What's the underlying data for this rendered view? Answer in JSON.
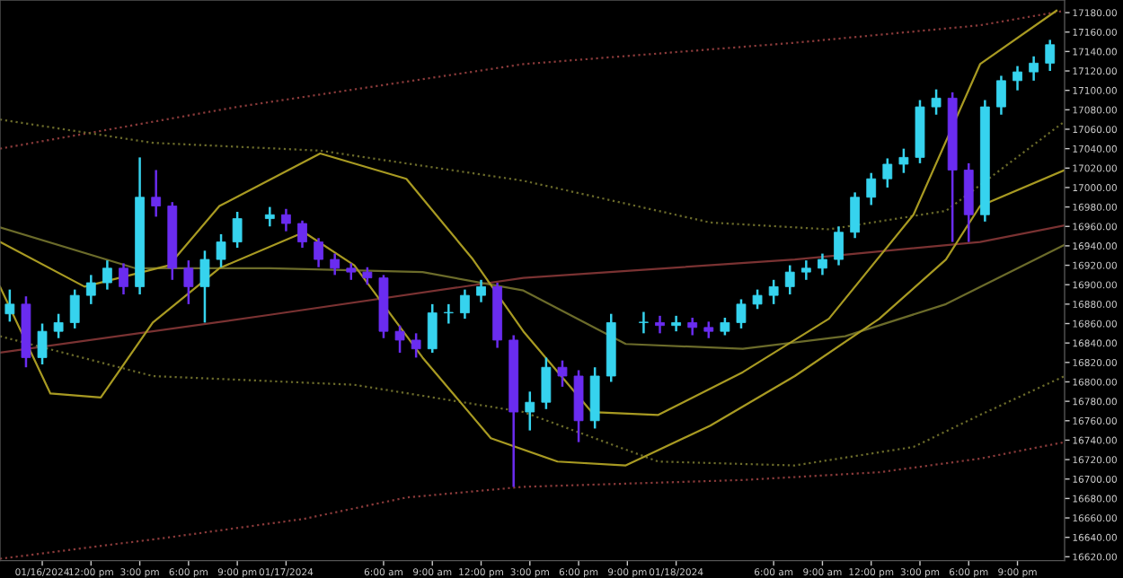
{
  "chart_data": {
    "type": "candlestick",
    "x": [
      "2024-01-16T07:00",
      "2024-01-16T08:00",
      "2024-01-16T09:00",
      "2024-01-16T10:00",
      "2024-01-16T11:00",
      "2024-01-16T12:00",
      "2024-01-16T13:00",
      "2024-01-16T14:00",
      "2024-01-16T15:00",
      "2024-01-16T16:00",
      "2024-01-16T17:00",
      "2024-01-16T18:00",
      "2024-01-16T19:00",
      "2024-01-16T20:00",
      "2024-01-16T21:00",
      "2024-01-16T23:00",
      "2024-01-17T00:00",
      "2024-01-17T01:00",
      "2024-01-17T02:00",
      "2024-01-17T03:00",
      "2024-01-17T04:00",
      "2024-01-17T05:00",
      "2024-01-17T06:00",
      "2024-01-17T07:00",
      "2024-01-17T08:00",
      "2024-01-17T09:00",
      "2024-01-17T10:00",
      "2024-01-17T11:00",
      "2024-01-17T12:00",
      "2024-01-17T13:00",
      "2024-01-17T14:00",
      "2024-01-17T15:00",
      "2024-01-17T16:00",
      "2024-01-17T17:00",
      "2024-01-17T18:00",
      "2024-01-17T19:00",
      "2024-01-17T20:00",
      "2024-01-17T22:00",
      "2024-01-17T23:00",
      "2024-01-18T00:00",
      "2024-01-18T01:00",
      "2024-01-18T02:00",
      "2024-01-18T03:00",
      "2024-01-18T04:00",
      "2024-01-18T05:00",
      "2024-01-18T06:00",
      "2024-01-18T07:00",
      "2024-01-18T08:00",
      "2024-01-18T09:00",
      "2024-01-18T10:00",
      "2024-01-18T11:00",
      "2024-01-18T12:00",
      "2024-01-18T13:00",
      "2024-01-18T14:00",
      "2024-01-18T15:00",
      "2024-01-18T16:00",
      "2024-01-18T17:00",
      "2024-01-18T18:00",
      "2024-01-18T19:00",
      "2024-01-18T20:00",
      "2024-01-18T21:00",
      "2024-01-18T22:00",
      "2024-01-18T23:00"
    ],
    "ohlc": [
      [
        16870,
        16895,
        16862,
        16880
      ],
      [
        16880,
        16888,
        16815,
        16825
      ],
      [
        16825,
        16860,
        16818,
        16852
      ],
      [
        16852,
        16870,
        16845,
        16861
      ],
      [
        16861,
        16895,
        16855,
        16889
      ],
      [
        16889,
        16910,
        16880,
        16902
      ],
      [
        16902,
        16925,
        16895,
        16917
      ],
      [
        16917,
        16922,
        16890,
        16898
      ],
      [
        16898,
        17031,
        16890,
        16990
      ],
      [
        16990,
        17018,
        16970,
        16981
      ],
      [
        16981,
        16985,
        16905,
        16917
      ],
      [
        16917,
        16925,
        16880,
        16898
      ],
      [
        16898,
        16935,
        16861,
        16926
      ],
      [
        16926,
        16952,
        16918,
        16944
      ],
      [
        16944,
        16975,
        16938,
        16968
      ],
      [
        16968,
        16980,
        16960,
        16972
      ],
      [
        16972,
        16978,
        16955,
        16963
      ],
      [
        16963,
        16966,
        16938,
        16944
      ],
      [
        16944,
        16948,
        16918,
        16926
      ],
      [
        16926,
        16932,
        16910,
        16917
      ],
      [
        16917,
        16922,
        16905,
        16913
      ],
      [
        16913,
        16918,
        16900,
        16907
      ],
      [
        16907,
        16910,
        16845,
        16852
      ],
      [
        16852,
        16858,
        16830,
        16843
      ],
      [
        16843,
        16850,
        16825,
        16834
      ],
      [
        16834,
        16880,
        16830,
        16871
      ],
      [
        16871,
        16880,
        16860,
        16871
      ],
      [
        16871,
        16895,
        16865,
        16889
      ],
      [
        16889,
        16905,
        16882,
        16898
      ],
      [
        16898,
        16902,
        16835,
        16843
      ],
      [
        16843,
        16848,
        16692,
        16769
      ],
      [
        16769,
        16790,
        16750,
        16779
      ],
      [
        16779,
        16825,
        16772,
        16815
      ],
      [
        16815,
        16822,
        16795,
        16806
      ],
      [
        16806,
        16812,
        16738,
        16760
      ],
      [
        16760,
        16815,
        16752,
        16806
      ],
      [
        16806,
        16870,
        16800,
        16861
      ],
      [
        16861,
        16872,
        16850,
        16861
      ],
      [
        16861,
        16868,
        16850,
        16858
      ],
      [
        16858,
        16868,
        16852,
        16861
      ],
      [
        16861,
        16866,
        16848,
        16856
      ],
      [
        16856,
        16862,
        16845,
        16852
      ],
      [
        16852,
        16866,
        16848,
        16861
      ],
      [
        16861,
        16885,
        16855,
        16880
      ],
      [
        16880,
        16895,
        16875,
        16889
      ],
      [
        16889,
        16905,
        16880,
        16898
      ],
      [
        16898,
        16920,
        16890,
        16913
      ],
      [
        16913,
        16925,
        16905,
        16917
      ],
      [
        16917,
        16932,
        16910,
        16926
      ],
      [
        16926,
        16960,
        16920,
        16954
      ],
      [
        16954,
        16995,
        16948,
        16990
      ],
      [
        16990,
        17015,
        16982,
        17009
      ],
      [
        17009,
        17030,
        17000,
        17024
      ],
      [
        17024,
        17040,
        17015,
        17031
      ],
      [
        17031,
        17090,
        17025,
        17083
      ],
      [
        17083,
        17101,
        17075,
        17092
      ],
      [
        17092,
        17098,
        16944,
        17018
      ],
      [
        17018,
        17025,
        16944,
        16972
      ],
      [
        16972,
        17090,
        16965,
        17083
      ],
      [
        17083,
        17115,
        17075,
        17110
      ],
      [
        17110,
        17125,
        17100,
        17119
      ],
      [
        17119,
        17135,
        17110,
        17128
      ],
      [
        17128,
        17152,
        17120,
        17147
      ]
    ],
    "colors": [
      "#36d3ee",
      "#6a2cf0",
      "#36d3ee",
      "#36d3ee",
      "#36d3ee",
      "#36d3ee",
      "#36d3ee",
      "#6a2cf0",
      "#36d3ee",
      "#6a2cf0",
      "#6a2cf0",
      "#6a2cf0",
      "#36d3ee",
      "#36d3ee",
      "#36d3ee",
      "#36d3ee",
      "#6a2cf0",
      "#6a2cf0",
      "#6a2cf0",
      "#6a2cf0",
      "#6a2cf0",
      "#6a2cf0",
      "#6a2cf0",
      "#6a2cf0",
      "#6a2cf0",
      "#36d3ee",
      "#36d3ee",
      "#36d3ee",
      "#36d3ee",
      "#6a2cf0",
      "#6a2cf0",
      "#36d3ee",
      "#36d3ee",
      "#6a2cf0",
      "#6a2cf0",
      "#36d3ee",
      "#36d3ee",
      "#36d3ee",
      "#6a2cf0",
      "#36d3ee",
      "#6a2cf0",
      "#6a2cf0",
      "#36d3ee",
      "#36d3ee",
      "#36d3ee",
      "#36d3ee",
      "#36d3ee",
      "#36d3ee",
      "#36d3ee",
      "#36d3ee",
      "#36d3ee",
      "#36d3ee",
      "#36d3ee",
      "#36d3ee",
      "#36d3ee",
      "#36d3ee",
      "#6a2cf0",
      "#6a2cf0",
      "#36d3ee",
      "#36d3ee",
      "#36d3ee",
      "#36d3ee",
      "#36d3ee"
    ],
    "series": [
      {
        "type": "line",
        "color": "#8a3a3a",
        "line_style": "dotted",
        "x": [
          "2024-01-16T06:24",
          "2024-01-16T21:00",
          "2024-01-17T14:36",
          "2024-01-18T07:18",
          "2024-01-18T18:42",
          "2024-01-18T23:54"
        ],
        "values": [
          17040,
          17083,
          17127,
          17149,
          17167,
          17182
        ]
      },
      {
        "type": "line",
        "color": "#8a3a3a",
        "line_style": "dotted",
        "x": [
          "2024-01-16T06:24",
          "2024-01-16T16:48",
          "2024-01-17T01:06",
          "2024-01-17T07:24",
          "2024-01-17T14:36",
          "2024-01-18T04:06",
          "2024-01-18T12:30",
          "2024-01-18T18:42",
          "2024-01-18T23:54"
        ],
        "values": [
          16618,
          16640,
          16659,
          16681,
          16692,
          16699,
          16707,
          16721,
          16738
        ]
      },
      {
        "type": "line",
        "color": "#7a3232",
        "line_style": "solid",
        "x": [
          "2024-01-16T06:24",
          "2024-01-16T23:00",
          "2024-01-17T14:36",
          "2024-01-18T07:18",
          "2024-01-18T18:42",
          "2024-01-18T23:54"
        ],
        "values": [
          16830,
          16869,
          16907,
          16926,
          16944,
          16961
        ]
      },
      {
        "type": "line",
        "color": "#6b6b2a",
        "line_style": "dotted",
        "x": [
          "2024-01-16T06:24",
          "2024-01-16T15:48",
          "2024-01-17T02:06",
          "2024-01-17T14:36",
          "2024-01-18T02:06",
          "2024-01-18T09:24",
          "2024-01-18T16:36",
          "2024-01-18T23:54"
        ],
        "values": [
          17070,
          17046,
          17038,
          17007,
          16964,
          16957,
          16976,
          17068
        ]
      },
      {
        "type": "line",
        "color": "#6b6b2a",
        "line_style": "dotted",
        "x": [
          "2024-01-16T06:24",
          "2024-01-16T15:48",
          "2024-01-17T04:12",
          "2024-01-17T14:36",
          "2024-01-17T22:54",
          "2024-01-18T07:18",
          "2024-01-18T14:36",
          "2024-01-18T18:42",
          "2024-01-18T23:54"
        ],
        "values": [
          16847,
          16806,
          16797,
          16769,
          16718,
          16714,
          16733,
          16766,
          16806
        ]
      },
      {
        "type": "line",
        "color": "#6b6b2a",
        "line_style": "solid",
        "x": [
          "2024-01-16T06:24",
          "2024-01-16T14:42",
          "2024-01-16T23:00",
          "2024-01-17T08:24",
          "2024-01-17T14:36",
          "2024-01-17T20:54",
          "2024-01-18T04:06",
          "2024-01-18T10:24",
          "2024-01-18T16:36",
          "2024-01-18T23:54"
        ],
        "values": [
          16959,
          16917,
          16917,
          16913,
          16894,
          16839,
          16834,
          16847,
          16880,
          16941
        ]
      },
      {
        "type": "line",
        "color": "#a89a22",
        "line_style": "solid",
        "x": [
          "2024-01-16T06:24",
          "2024-01-16T11:36",
          "2024-01-16T16:48",
          "2024-01-16T19:54",
          "2024-01-17T02:06",
          "2024-01-17T07:24",
          "2024-01-17T11:30",
          "2024-01-17T14:36",
          "2024-01-17T18:48",
          "2024-01-17T22:54",
          "2024-01-18T04:06",
          "2024-01-18T09:24",
          "2024-01-18T14:36",
          "2024-01-18T18:42",
          "2024-01-18T23:24"
        ],
        "values": [
          16944,
          16898,
          16920,
          16981,
          17035,
          17009,
          16926,
          16852,
          16769,
          16766,
          16810,
          16865,
          16972,
          17127,
          17182
        ]
      },
      {
        "type": "line",
        "color": "#a89a22",
        "line_style": "solid",
        "x": [
          "2024-01-16T06:24",
          "2024-01-16T09:30",
          "2024-01-16T12:36",
          "2024-01-16T15:48",
          "2024-01-16T19:54",
          "2024-01-17T01:06",
          "2024-01-17T04:12",
          "2024-01-17T08:24",
          "2024-01-17T12:36",
          "2024-01-17T16:42",
          "2024-01-17T20:54",
          "2024-01-18T02:06",
          "2024-01-18T07:18",
          "2024-01-18T12:30",
          "2024-01-18T16:36",
          "2024-01-18T18:42",
          "2024-01-18T23:54"
        ],
        "values": [
          16898,
          16788,
          16784,
          16861,
          16917,
          16954,
          16920,
          16825,
          16742,
          16718,
          16714,
          16755,
          16806,
          16865,
          16926,
          16981,
          17018
        ]
      }
    ],
    "xlim": [
      "2024-01-16T06:24",
      "2024-01-18T23:54"
    ],
    "xticks": [
      {
        "value": "2024-01-16T09:00",
        "label": "01/16/2024"
      },
      {
        "value": "2024-01-16T12:00",
        "label": "12:00 pm"
      },
      {
        "value": "2024-01-16T15:00",
        "label": "3:00 pm"
      },
      {
        "value": "2024-01-16T18:00",
        "label": "6:00 pm"
      },
      {
        "value": "2024-01-16T21:00",
        "label": "9:00 pm"
      },
      {
        "value": "2024-01-17T00:00",
        "label": "01/17/2024"
      },
      {
        "value": "2024-01-17T06:00",
        "label": "6:00 am"
      },
      {
        "value": "2024-01-17T09:00",
        "label": "9:00 am"
      },
      {
        "value": "2024-01-17T12:00",
        "label": "12:00 pm"
      },
      {
        "value": "2024-01-17T15:00",
        "label": "3:00 pm"
      },
      {
        "value": "2024-01-17T18:00",
        "label": "6:00 pm"
      },
      {
        "value": "2024-01-17T21:00",
        "label": "9:00 pm"
      },
      {
        "value": "2024-01-18T00:00",
        "label": "01/18/2024"
      },
      {
        "value": "2024-01-18T06:00",
        "label": "6:00 am"
      },
      {
        "value": "2024-01-18T09:00",
        "label": "9:00 am"
      },
      {
        "value": "2024-01-18T12:00",
        "label": "12:00 pm"
      },
      {
        "value": "2024-01-18T15:00",
        "label": "3:00 pm"
      },
      {
        "value": "2024-01-18T18:00",
        "label": "6:00 pm"
      },
      {
        "value": "2024-01-18T21:00",
        "label": "9:00 pm"
      }
    ],
    "ylim": [
      16616,
      17193
    ],
    "yticks": [
      {
        "value": 16620,
        "label": "16620.00"
      },
      {
        "value": 16640,
        "label": "16640.00"
      },
      {
        "value": 16660,
        "label": "16660.00"
      },
      {
        "value": 16680,
        "label": "16680.00"
      },
      {
        "value": 16700,
        "label": "16700.00"
      },
      {
        "value": 16720,
        "label": "16720.00"
      },
      {
        "value": 16740,
        "label": "16740.00"
      },
      {
        "value": 16760,
        "label": "16760.00"
      },
      {
        "value": 16780,
        "label": "16780.00"
      },
      {
        "value": 16800,
        "label": "16800.00"
      },
      {
        "value": 16820,
        "label": "16820.00"
      },
      {
        "value": 16840,
        "label": "16840.00"
      },
      {
        "value": 16860,
        "label": "16860.00"
      },
      {
        "value": 16880,
        "label": "16880.00"
      },
      {
        "value": 16900,
        "label": "16900.00"
      },
      {
        "value": 16920,
        "label": "16920.00"
      },
      {
        "value": 16940,
        "label": "16940.00"
      },
      {
        "value": 16960,
        "label": "16960.00"
      },
      {
        "value": 16980,
        "label": "16980.00"
      },
      {
        "value": 17000,
        "label": "17000.00"
      },
      {
        "value": 17020,
        "label": "17020.00"
      },
      {
        "value": 17040,
        "label": "17040.00"
      },
      {
        "value": 17060,
        "label": "17060.00"
      },
      {
        "value": 17080,
        "label": "17080.00"
      },
      {
        "value": 17100,
        "label": "17100.00"
      },
      {
        "value": 17120,
        "label": "17120.00"
      },
      {
        "value": 17140,
        "label": "17140.00"
      },
      {
        "value": 17160,
        "label": "17160.00"
      },
      {
        "value": 17180,
        "label": "17180.00"
      }
    ]
  }
}
